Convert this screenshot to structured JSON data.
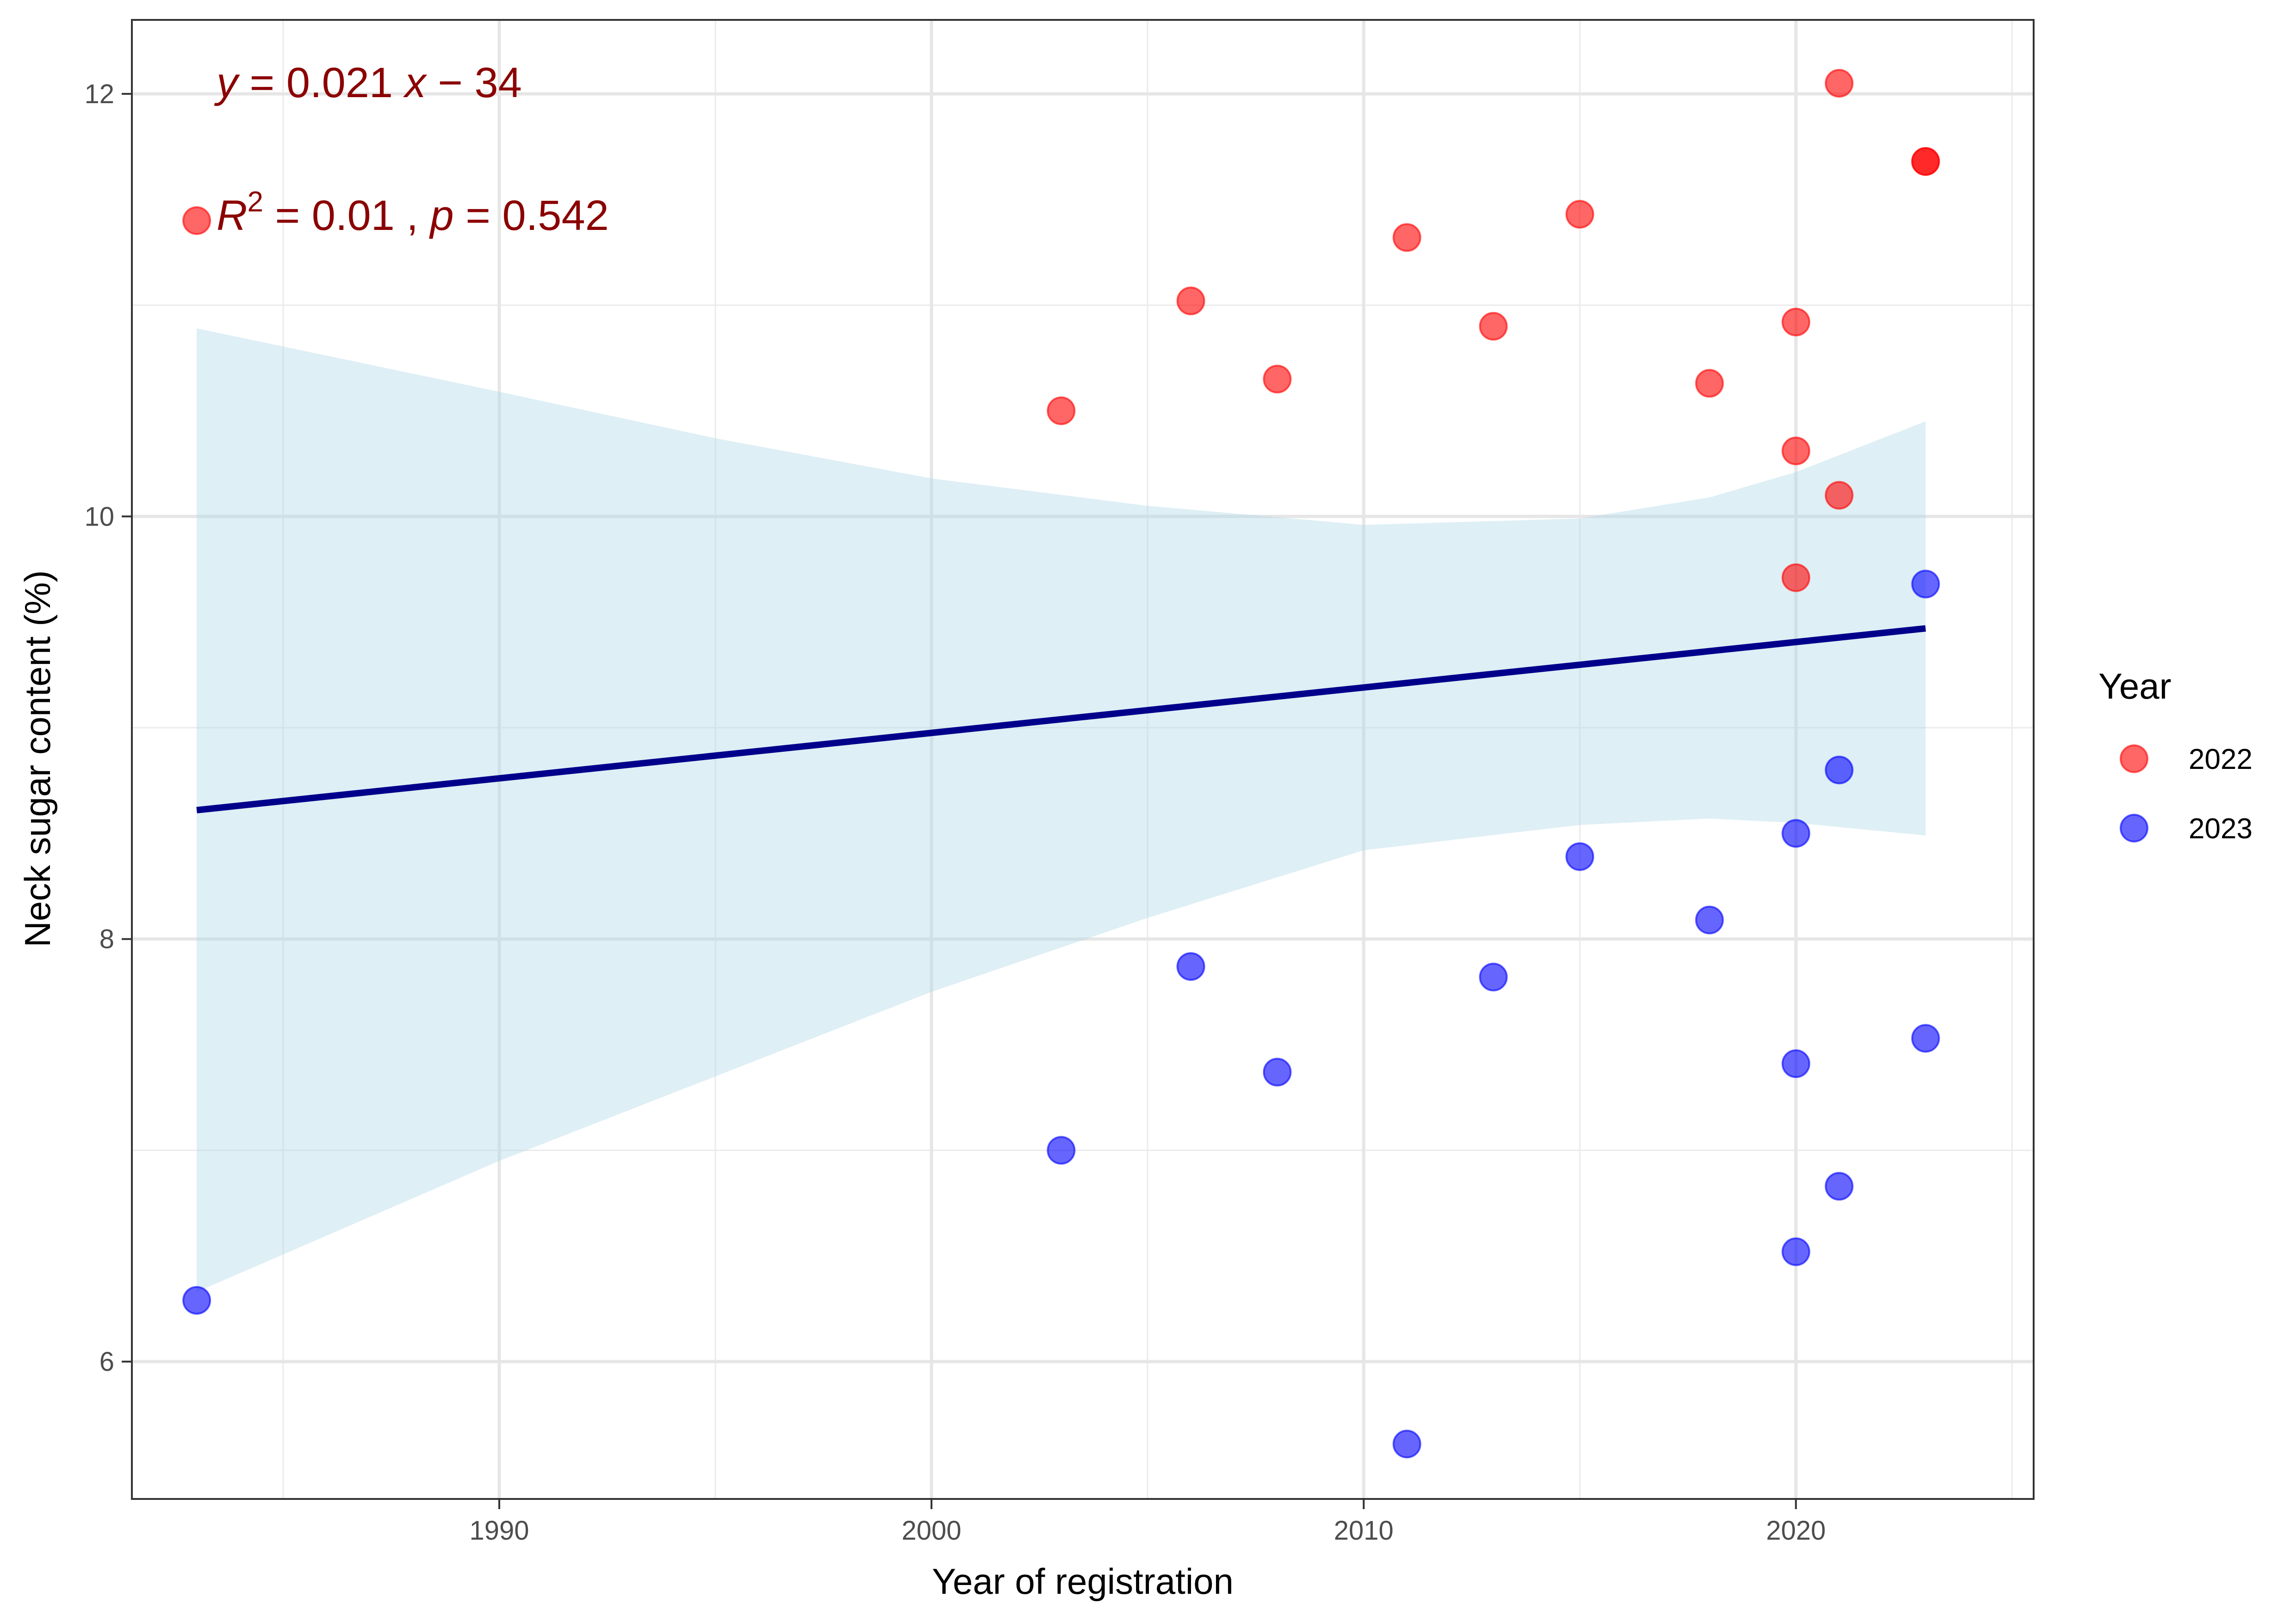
{
  "chart_data": {
    "type": "scatter",
    "xlabel": "Year of registration",
    "ylabel": "Neck sugar content (%)",
    "xlim": [
      1981.5,
      2025.5
    ],
    "ylim": [
      5.35,
      12.35
    ],
    "x_ticks": [
      1990,
      2000,
      2010,
      2020
    ],
    "x_minor_ticks": [
      1985,
      1995,
      2005,
      2015,
      2025
    ],
    "y_ticks": [
      6,
      8,
      10,
      12
    ],
    "y_minor_ticks": [
      7,
      9,
      11
    ],
    "grid": true,
    "legend": {
      "title": "Year",
      "position": "right"
    },
    "series": [
      {
        "name": "2022",
        "color": "#ff0000",
        "points": [
          {
            "x": 1983,
            "y": 11.4
          },
          {
            "x": 2003,
            "y": 10.5
          },
          {
            "x": 2006,
            "y": 11.02
          },
          {
            "x": 2008,
            "y": 10.65
          },
          {
            "x": 2011,
            "y": 11.32
          },
          {
            "x": 2013,
            "y": 10.9
          },
          {
            "x": 2015,
            "y": 11.43
          },
          {
            "x": 2018,
            "y": 10.63
          },
          {
            "x": 2020,
            "y": 10.92
          },
          {
            "x": 2020,
            "y": 10.31
          },
          {
            "x": 2020,
            "y": 9.71
          },
          {
            "x": 2021,
            "y": 12.05
          },
          {
            "x": 2021,
            "y": 10.1
          },
          {
            "x": 2023,
            "y": 11.68
          },
          {
            "x": 2023,
            "y": 11.68
          }
        ]
      },
      {
        "name": "2023",
        "color": "#0000ff",
        "points": [
          {
            "x": 1983,
            "y": 6.29
          },
          {
            "x": 2003,
            "y": 7.0
          },
          {
            "x": 2006,
            "y": 7.87
          },
          {
            "x": 2008,
            "y": 7.37
          },
          {
            "x": 2011,
            "y": 5.61
          },
          {
            "x": 2013,
            "y": 7.82
          },
          {
            "x": 2015,
            "y": 8.39
          },
          {
            "x": 2018,
            "y": 8.09
          },
          {
            "x": 2020,
            "y": 8.5
          },
          {
            "x": 2020,
            "y": 7.41
          },
          {
            "x": 2020,
            "y": 6.52
          },
          {
            "x": 2021,
            "y": 8.8
          },
          {
            "x": 2021,
            "y": 6.83
          },
          {
            "x": 2023,
            "y": 9.68
          },
          {
            "x": 2023,
            "y": 7.53
          }
        ]
      }
    ],
    "regression": {
      "color": "#00008b",
      "band_color": "#add8e6",
      "x_range": [
        1983,
        2023
      ],
      "y_range": [
        8.61,
        9.47
      ]
    },
    "confidence_band": [
      {
        "x": 1983,
        "lower": 6.33,
        "upper": 10.89
      },
      {
        "x": 1990,
        "lower": 6.95,
        "upper": 10.59
      },
      {
        "x": 1995,
        "lower": 7.35,
        "upper": 10.37
      },
      {
        "x": 2000,
        "lower": 7.75,
        "upper": 10.18
      },
      {
        "x": 2005,
        "lower": 8.1,
        "upper": 10.05
      },
      {
        "x": 2010,
        "lower": 8.42,
        "upper": 9.96
      },
      {
        "x": 2015,
        "lower": 8.54,
        "upper": 9.99
      },
      {
        "x": 2018,
        "lower": 8.57,
        "upper": 10.09
      },
      {
        "x": 2020,
        "lower": 8.55,
        "upper": 10.21
      },
      {
        "x": 2023,
        "lower": 8.49,
        "upper": 10.45
      }
    ],
    "annotations": {
      "equation": {
        "y_var": "y",
        "eq_sign": " = ",
        "slope": "0.021 ",
        "x_var": "x",
        "minus": " − ",
        "intercept": "34"
      },
      "stats": {
        "r_var": "R",
        "r_exp": "2",
        "r_value": " = 0.01 , ",
        "p_var": "p",
        "p_value": " = 0.542"
      }
    }
  }
}
